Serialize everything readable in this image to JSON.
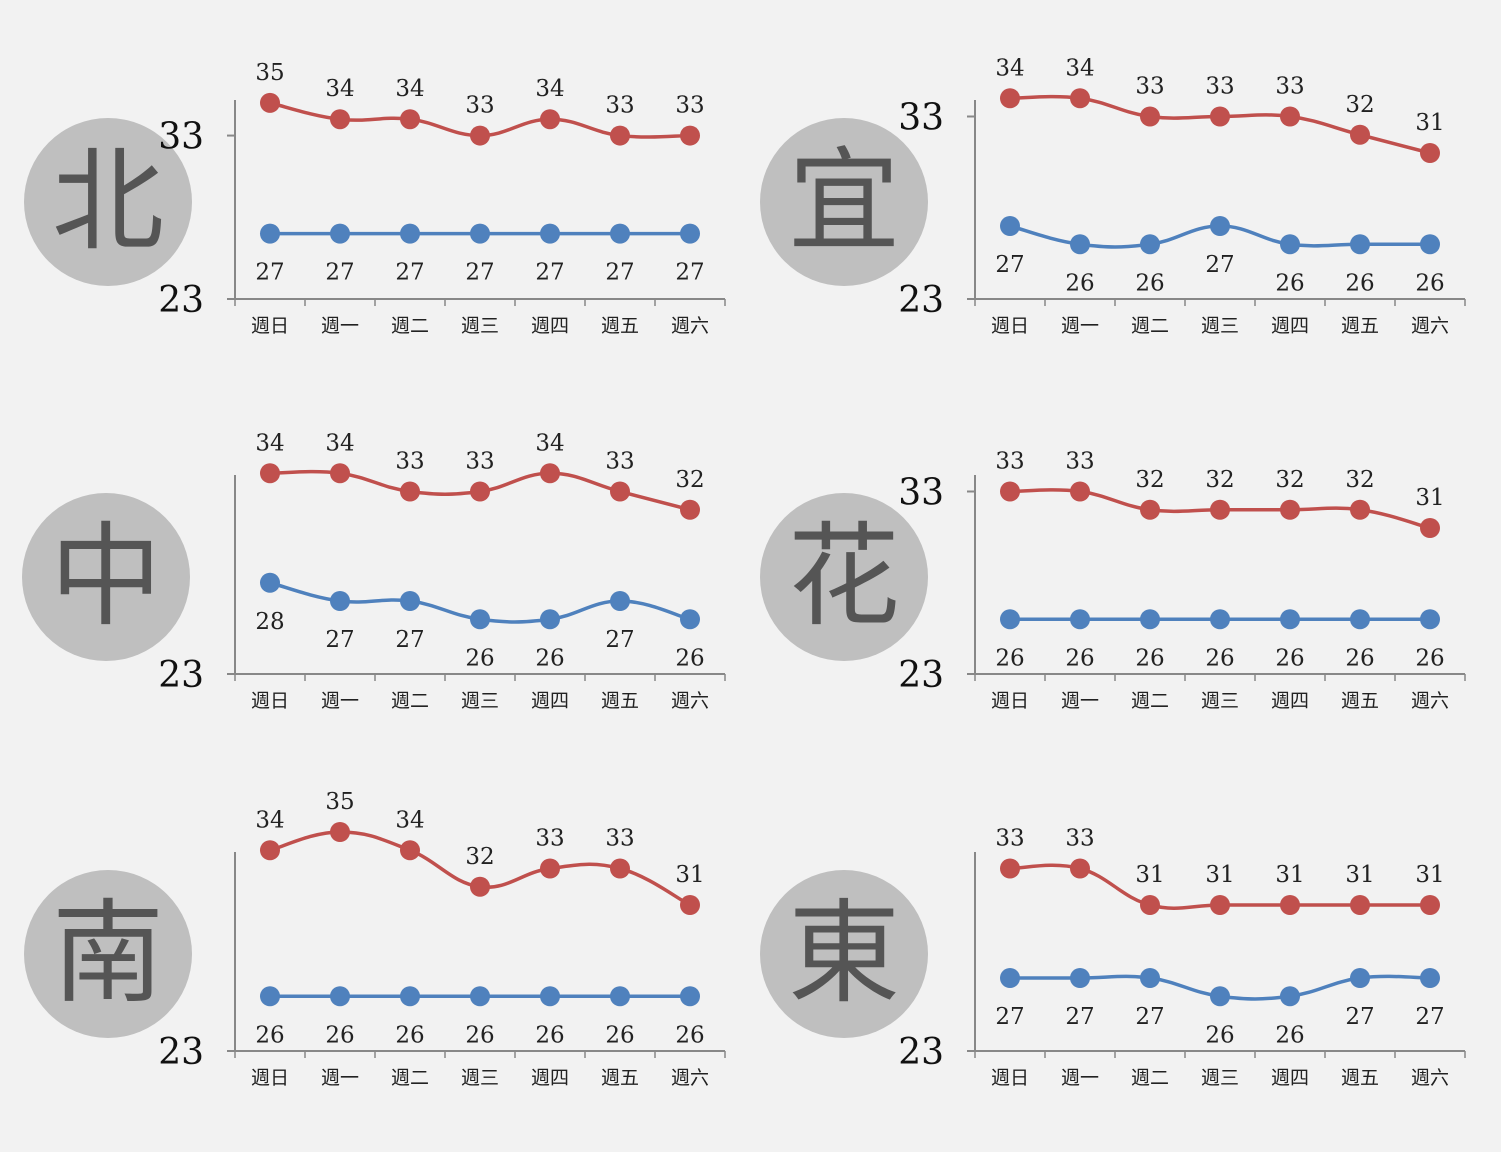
{
  "colors": {
    "high": "#c0504d",
    "low": "#4f81bd",
    "badge": "#bfbfbf",
    "axis": "#888888"
  },
  "chart_data": [
    {
      "type": "line",
      "badge": "北",
      "categories": [
        "週日",
        "週一",
        "週二",
        "週三",
        "週四",
        "週五",
        "週六"
      ],
      "series": [
        {
          "values": [
            35,
            34,
            34,
            33,
            34,
            33,
            33
          ]
        },
        {
          "values": [
            27,
            27,
            27,
            27,
            27,
            27,
            27
          ]
        }
      ],
      "yticks": [
        "23",
        "33"
      ],
      "ylim": [
        23,
        36.4
      ]
    },
    {
      "type": "line",
      "badge": "宜",
      "categories": [
        "週日",
        "週一",
        "週二",
        "週三",
        "週四",
        "週五",
        "週六"
      ],
      "series": [
        {
          "values": [
            34,
            34,
            33,
            33,
            33,
            32,
            31
          ]
        },
        {
          "values": [
            27,
            26,
            26,
            27,
            26,
            26,
            26
          ]
        }
      ],
      "yticks": [
        "23",
        "33"
      ],
      "ylim": [
        23,
        35
      ]
    },
    {
      "type": "line",
      "badge": "中",
      "categories": [
        "週日",
        "週一",
        "週二",
        "週三",
        "週四",
        "週五",
        "週六"
      ],
      "series": [
        {
          "values": [
            34,
            34,
            33,
            33,
            34,
            33,
            32
          ]
        },
        {
          "values": [
            28,
            27,
            27,
            26,
            26,
            27,
            26
          ]
        }
      ],
      "yticks": [
        "23"
      ],
      "ylim": [
        23,
        35
      ]
    },
    {
      "type": "line",
      "badge": "花",
      "categories": [
        "週日",
        "週一",
        "週二",
        "週三",
        "週四",
        "週五",
        "週六"
      ],
      "series": [
        {
          "values": [
            33,
            33,
            32,
            32,
            32,
            32,
            31
          ]
        },
        {
          "values": [
            26,
            26,
            26,
            26,
            26,
            26,
            26
          ]
        }
      ],
      "yticks": [
        "23",
        "33"
      ],
      "ylim": [
        23,
        35
      ]
    },
    {
      "type": "line",
      "badge": "南",
      "categories": [
        "週日",
        "週一",
        "週二",
        "週三",
        "週四",
        "週五",
        "週六"
      ],
      "series": [
        {
          "values": [
            34,
            35,
            34,
            32,
            33,
            33,
            31
          ]
        },
        {
          "values": [
            26,
            26,
            26,
            26,
            26,
            26,
            26
          ]
        }
      ],
      "yticks": [
        "23"
      ],
      "ylim": [
        23,
        35
      ]
    },
    {
      "type": "line",
      "badge": "東",
      "categories": [
        "週日",
        "週一",
        "週二",
        "週三",
        "週四",
        "週五",
        "週六"
      ],
      "series": [
        {
          "values": [
            33,
            33,
            31,
            31,
            31,
            31,
            31
          ]
        },
        {
          "values": [
            27,
            27,
            27,
            26,
            26,
            27,
            27
          ]
        }
      ],
      "yticks": [
        "23"
      ],
      "ylim": [
        23,
        35
      ]
    }
  ]
}
